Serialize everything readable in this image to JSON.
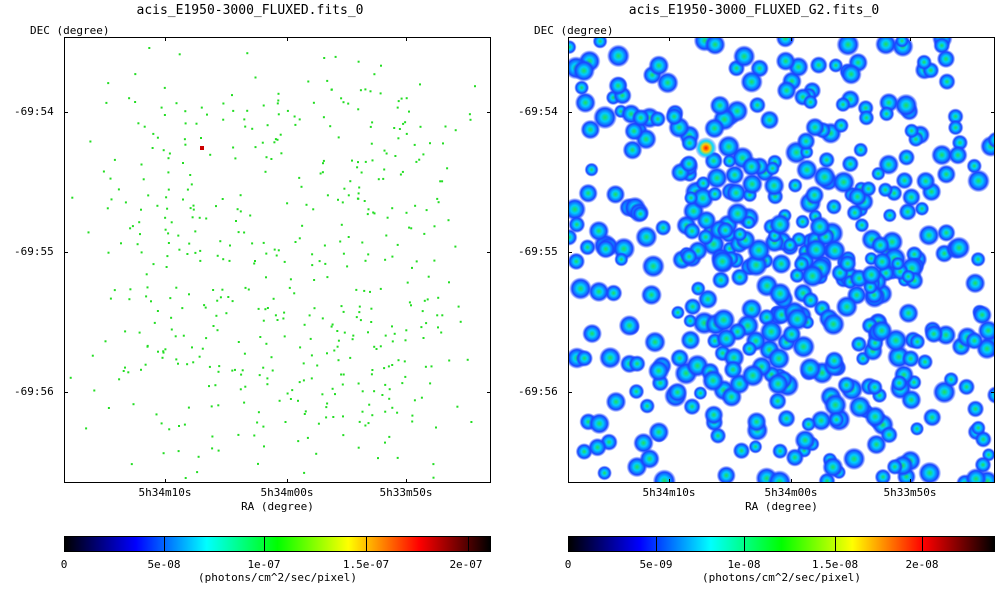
{
  "panels": [
    {
      "title": "acis_E1950-3000_FLUXED.fits_0",
      "ylabel": "DEC (degree)",
      "xlabel": "RA (degree)",
      "yticks": [
        "-69:54",
        "-69:55",
        "-69:56"
      ],
      "xticks": [
        "5h34m10s",
        "5h34m00s",
        "5h33m50s"
      ],
      "colorbar": {
        "ticks": [
          "0",
          "5e-08",
          "1e-07",
          "1.5e-07",
          "2e-07"
        ],
        "label": "(photons/cm^2/sec/pixel)"
      }
    },
    {
      "title": "acis_E1950-3000_FLUXED_G2.fits_0",
      "ylabel": "DEC (degree)",
      "xlabel": "RA (degree)",
      "yticks": [
        "-69:54",
        "-69:55",
        "-69:56"
      ],
      "xticks": [
        "5h34m10s",
        "5h34m00s",
        "5h33m50s"
      ],
      "colorbar": {
        "ticks": [
          "0",
          "5e-09",
          "1e-08",
          "1.5e-08",
          "2e-08"
        ],
        "label": "(photons/cm^2/sec/pixel)"
      }
    }
  ],
  "colors": {
    "sparse_pixel": "#22dd22",
    "hot_source": "#cc0000",
    "colormap": [
      "#000000",
      "#0000ff",
      "#00ffff",
      "#00ff00",
      "#ffff00",
      "#ff0000",
      "#000000"
    ]
  }
}
